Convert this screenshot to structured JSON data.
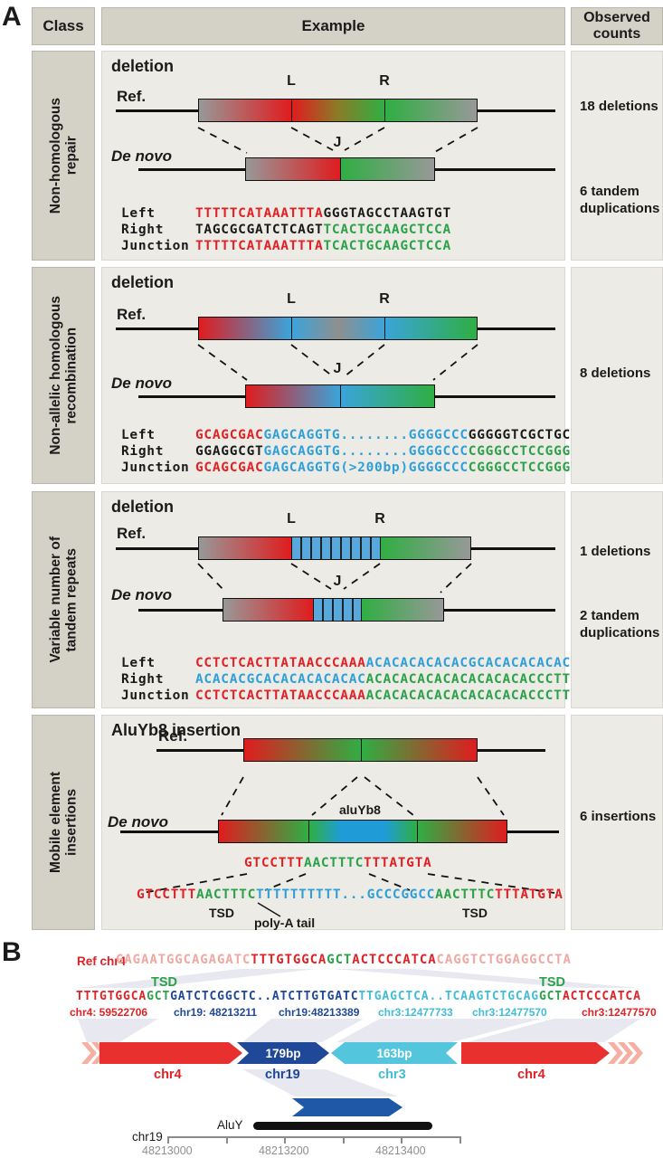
{
  "labels": {
    "ref": "Ref.",
    "denovo": "De novo",
    "l": "L",
    "r": "R",
    "j": "J"
  },
  "colors": {
    "red": "#e02125",
    "green": "#2ba149",
    "blue": "#2e9fd9",
    "darkblue": "#1f4899",
    "cyan": "#41bdd6",
    "faded": "#f0a8a2",
    "black": "#1a1a1a",
    "cell_dark": "#d4d1c7",
    "cell_light": "#edebe5"
  },
  "panel_a": {
    "label": "A",
    "header": {
      "class": "Class",
      "example": "Example",
      "observed": "Observed\ncounts"
    },
    "rows": [
      {
        "class_label": "Non-homologous\nrepair",
        "title": "deletion",
        "seq": [
          {
            "label": "Left",
            "parts": [
              {
                "t": "TTTTTCATAAATTTA",
                "c": "red"
              },
              {
                "t": "GGGTAGCCTAAGTGT",
                "c": "black"
              }
            ]
          },
          {
            "label": "Right",
            "parts": [
              {
                "t": "TAGCGCGATCTCAGT",
                "c": "black"
              },
              {
                "t": "TCACTGCAAGCTCCA",
                "c": "green"
              }
            ]
          },
          {
            "label": "Junction",
            "parts": [
              {
                "t": "TTTTTCATAAATTTA",
                "c": "red"
              },
              {
                "t": "TCACTGCAAGCTCCA",
                "c": "green"
              }
            ]
          }
        ],
        "counts": [
          "18 deletions",
          "6 tandem\nduplications"
        ]
      },
      {
        "class_label": "Non-allelic homologous\nrecombination",
        "title": "deletion",
        "seq": [
          {
            "label": "Left",
            "parts": [
              {
                "t": "GCAGCGAC",
                "c": "red"
              },
              {
                "t": "GAGCAGGTG........GGGGCCC",
                "c": "blue"
              },
              {
                "t": "GGGGGTCGCTGC",
                "c": "black"
              }
            ]
          },
          {
            "label": "Right",
            "parts": [
              {
                "t": "GGAGGCGT",
                "c": "black"
              },
              {
                "t": "GAGCAGGTG........GGGGCCC",
                "c": "blue"
              },
              {
                "t": "CGGGCCTCCGGG",
                "c": "green"
              }
            ]
          },
          {
            "label": "Junction",
            "parts": [
              {
                "t": "GCAGCGAC",
                "c": "red"
              },
              {
                "t": "GAGCAGGTG(>200bp)GGGGCCC",
                "c": "blue"
              },
              {
                "t": "CGGGCCTCCGGG",
                "c": "green"
              }
            ]
          }
        ],
        "counts": [
          "8 deletions"
        ]
      },
      {
        "class_label": "Variable number of\ntandem repeats",
        "title": "deletion",
        "seq": [
          {
            "label": "Left",
            "parts": [
              {
                "t": "CCTCTCACTTATAACCCAAA",
                "c": "red"
              },
              {
                "t": "ACACACACACACGCACACACACAC",
                "c": "blue"
              }
            ]
          },
          {
            "label": "Right",
            "parts": [
              {
                "t": "ACACACGCACACACACACAC",
                "c": "blue"
              },
              {
                "t": "ACACACACACACACACACACCCTT",
                "c": "green"
              }
            ]
          },
          {
            "label": "Junction",
            "parts": [
              {
                "t": "CCTCTCACTTATAACCCAAA",
                "c": "red"
              },
              {
                "t": "ACACACACACACACACACACCCTT",
                "c": "green"
              }
            ]
          }
        ],
        "counts": [
          "1 deletions",
          "2 tandem\nduplications"
        ]
      },
      {
        "class_label": "Mobile element\ninsertions",
        "title": "AluYb8 insertion",
        "alu_label": "aluYb8",
        "junction_seq": {
          "parts": [
            {
              "t": "GTCCTTT",
              "c": "red"
            },
            {
              "t": "AACTTTC",
              "c": "green"
            },
            {
              "t": "TTTATGTA",
              "c": "red"
            }
          ]
        },
        "expanded_seq": {
          "parts": [
            {
              "t": "GTCCTTT",
              "c": "red"
            },
            {
              "t": "AACTTTC",
              "c": "green"
            },
            {
              "t": "TTTTTTTTTT...GCCCGGCC",
              "c": "blue"
            },
            {
              "t": "AACTTTC",
              "c": "green"
            },
            {
              "t": "TTTATGTA",
              "c": "red"
            }
          ]
        },
        "tsd_label": "TSD",
        "tsd_label2": "TSD",
        "polya_label": "poly-A tail",
        "counts": [
          "6 insertions"
        ]
      }
    ]
  },
  "panel_b": {
    "label": "B",
    "ref_label": "Ref chr4",
    "ref_seq": {
      "parts": [
        {
          "t": "GAGAATGGCAGAGATC",
          "c": "faded"
        },
        {
          "t": "TTTGTGGCA",
          "c": "red"
        },
        {
          "t": "GCT",
          "c": "green"
        },
        {
          "t": "ACTCCCATCA",
          "c": "red"
        },
        {
          "t": "CAGGTCTGGAGGCCTA",
          "c": "faded"
        }
      ]
    },
    "tsd_left": "TSD",
    "tsd_right": "TSD",
    "seq": {
      "parts": [
        {
          "t": "TTTGTGGCA",
          "c": "red"
        },
        {
          "t": "GCT",
          "c": "green"
        },
        {
          "t": "GATCTCGGCTC..ATCTTGTGATC",
          "c": "darkblue"
        },
        {
          "t": "TTGAGCTCA..TCAAGTCTGCAG",
          "c": "cyan"
        },
        {
          "t": "GCT",
          "c": "green"
        },
        {
          "t": "ACTCCCATCA",
          "c": "red"
        }
      ]
    },
    "coords": [
      {
        "t": "chr4: 59522706",
        "c": "red"
      },
      {
        "t": "chr19: 48213211",
        "c": "darkblue"
      },
      {
        "t": "chr19:48213389",
        "c": "darkblue"
      },
      {
        "t": "chr3:12477733",
        "c": "cyan"
      },
      {
        "t": "chr3:12477570",
        "c": "cyan"
      },
      {
        "t": "chr3:12477570",
        "c": "red"
      }
    ],
    "arrows": {
      "seg1_label": "chr4",
      "seg2_size": "179bp",
      "seg2_label": "chr19",
      "seg3_size": "163bp",
      "seg3_label": "chr3",
      "seg4_label": "chr4"
    },
    "alu_track_label": "AluY",
    "axis": {
      "chrom": "chr19",
      "ticks": [
        "48213000",
        "48213200",
        "48213400"
      ]
    }
  }
}
